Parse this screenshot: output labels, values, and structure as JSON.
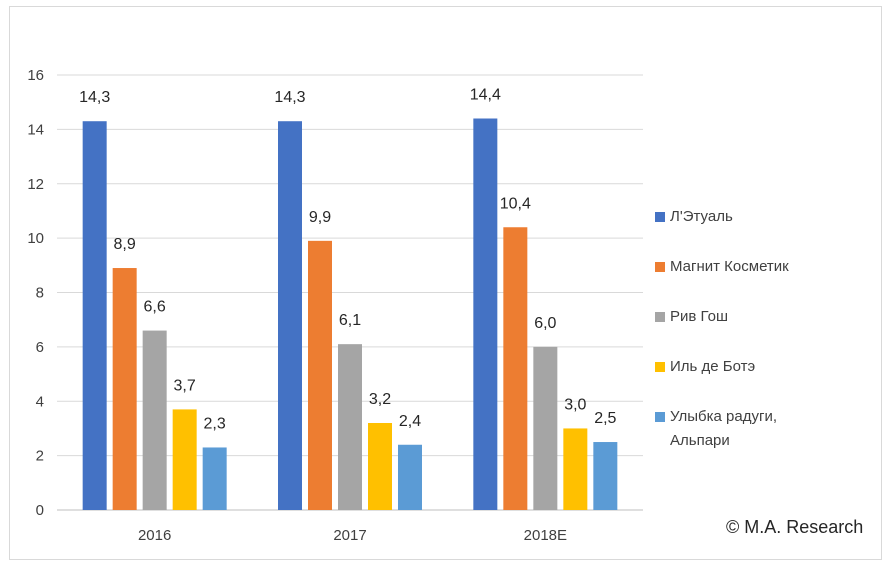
{
  "chart_data": {
    "type": "bar",
    "title": "",
    "xlabel": "",
    "ylabel": "",
    "ylim": [
      0,
      16
    ],
    "yticks": [
      "0",
      "2",
      "4",
      "6",
      "8",
      "10",
      "12",
      "14",
      "16"
    ],
    "categories": [
      "2016",
      "2017",
      "2018E"
    ],
    "series": [
      {
        "name": "Л'Этуаль",
        "color": "#4472C4",
        "values": [
          14.3,
          14.3,
          14.4
        ],
        "labels": [
          "14,3",
          "14,3",
          "14,4"
        ]
      },
      {
        "name": "Магнит Косметик",
        "color": "#ED7D31",
        "values": [
          8.9,
          9.9,
          10.4
        ],
        "labels": [
          "8,9",
          "9,9",
          "10,4"
        ]
      },
      {
        "name": "Рив Гош",
        "color": "#A5A5A5",
        "values": [
          6.6,
          6.1,
          6.0
        ],
        "labels": [
          "6,6",
          "6,1",
          "6,0"
        ]
      },
      {
        "name": "Иль де Ботэ",
        "color": "#FFC000",
        "values": [
          3.7,
          3.2,
          3.0
        ],
        "labels": [
          "3,7",
          "3,2",
          "3,0"
        ]
      },
      {
        "name": "Улыбка радуги, Альпари",
        "color": "#5B9BD5",
        "values": [
          2.3,
          2.4,
          2.5
        ],
        "labels": [
          "2,3",
          "2,4",
          "2,5"
        ]
      }
    ],
    "grid": true,
    "legend_position": "right"
  },
  "footer": {
    "copyright": "© M.A. Research"
  }
}
